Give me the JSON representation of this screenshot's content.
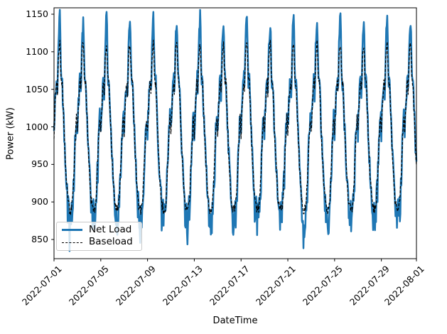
{
  "chart_data": {
    "type": "line",
    "title": "",
    "xlabel": "DateTime",
    "ylabel": "Power (kW)",
    "x_tick_labels": [
      "2022-07-01",
      "2022-07-05",
      "2022-07-09",
      "2022-07-13",
      "2022-07-17",
      "2022-07-21",
      "2022-07-25",
      "2022-07-29",
      "2022-08-01"
    ],
    "x_tick_days": [
      0,
      4,
      8,
      12,
      16,
      20,
      24,
      28,
      31
    ],
    "y_ticks": [
      850,
      900,
      950,
      1000,
      1050,
      1100,
      1150
    ],
    "ylim": [
      824,
      1158
    ],
    "xlim_days": [
      0,
      31
    ],
    "total_days": 31,
    "points_per_hour": 1,
    "cycle_hours": 48,
    "grid": false,
    "legend_position": "lower left",
    "series": [
      {
        "name": "Net Load",
        "color": "#1f77b4",
        "line_width": 2.5,
        "dash": null,
        "default_peak": 1152,
        "peak_values": [
          1152,
          1138
        ],
        "shoulder_value": 1060,
        "trough_value": 891,
        "min_spike_value": 840,
        "base_points": [
          [
            0,
            992
          ],
          [
            2,
            1028
          ],
          [
            4,
            1052
          ],
          [
            5,
            1060
          ],
          [
            6,
            1062
          ],
          [
            7,
            1042
          ],
          [
            8,
            1070
          ],
          [
            9,
            1108
          ],
          [
            10,
            1128
          ],
          [
            11,
            1140
          ],
          [
            12,
            1152
          ],
          [
            12.6,
            1143
          ],
          [
            13,
            1128
          ],
          [
            14,
            1085
          ],
          [
            15,
            1064
          ],
          [
            16,
            1060
          ],
          [
            17,
            1061
          ],
          [
            18,
            1042
          ],
          [
            20,
            1008
          ],
          [
            22,
            976
          ],
          [
            24,
            948
          ],
          [
            26,
            925
          ],
          [
            28,
            908
          ],
          [
            30,
            898
          ],
          [
            32,
            893
          ],
          [
            34,
            891
          ],
          [
            36,
            893
          ],
          [
            38,
            908
          ],
          [
            40,
            932
          ],
          [
            42,
            962
          ],
          [
            44,
            992
          ],
          [
            46,
            1014
          ],
          [
            47,
            1008
          ],
          [
            48,
            992
          ]
        ],
        "noise": {
          "seed": 42,
          "base_amp": 13,
          "peak_amp": 8,
          "trough_amp": 25,
          "trough_bias": -12,
          "spike_prob": 0.09,
          "spike_extra": -24
        }
      },
      {
        "name": "Baseload",
        "color": "#000000",
        "line_width": 1.2,
        "dash": "4 2.2",
        "default_peak": 1112,
        "peak_values": [
          1112,
          1104
        ],
        "shoulder_value": 1058,
        "trough_value": 891,
        "min_spike_value": 893,
        "base_points": [
          [
            0,
            990
          ],
          [
            2,
            1026
          ],
          [
            4,
            1050
          ],
          [
            5,
            1058
          ],
          [
            6,
            1060
          ],
          [
            7,
            1045
          ],
          [
            8,
            1068
          ],
          [
            9,
            1092
          ],
          [
            10,
            1103
          ],
          [
            11,
            1108
          ],
          [
            12,
            1112
          ],
          [
            12.6,
            1106
          ],
          [
            13,
            1098
          ],
          [
            14,
            1075
          ],
          [
            15,
            1062
          ],
          [
            16,
            1058
          ],
          [
            17,
            1059
          ],
          [
            18,
            1040
          ],
          [
            20,
            1006
          ],
          [
            22,
            974
          ],
          [
            24,
            946
          ],
          [
            26,
            923
          ],
          [
            28,
            906
          ],
          [
            30,
            897
          ],
          [
            32,
            893
          ],
          [
            34,
            891
          ],
          [
            36,
            893
          ],
          [
            38,
            906
          ],
          [
            40,
            930
          ],
          [
            42,
            960
          ],
          [
            44,
            990
          ],
          [
            46,
            1012
          ],
          [
            47,
            1006
          ],
          [
            48,
            990
          ]
        ],
        "noise": {
          "seed": 7,
          "base_amp": 6,
          "peak_amp": 6,
          "trough_amp": 7,
          "trough_bias": -2,
          "spike_prob": 0,
          "spike_extra": 0
        }
      }
    ],
    "notes": "Two overlaid time series over July 2022, oscillating with a 2-day period: 16 peaks alternating ~1152/~1138 kW (Net Load, solid blue) capped near ~1112 kW for Baseload (black dashed); shoulders ~1060 kW, troughs ~890-900 kW with Net Load noise spikes down to ~840 kW."
  }
}
